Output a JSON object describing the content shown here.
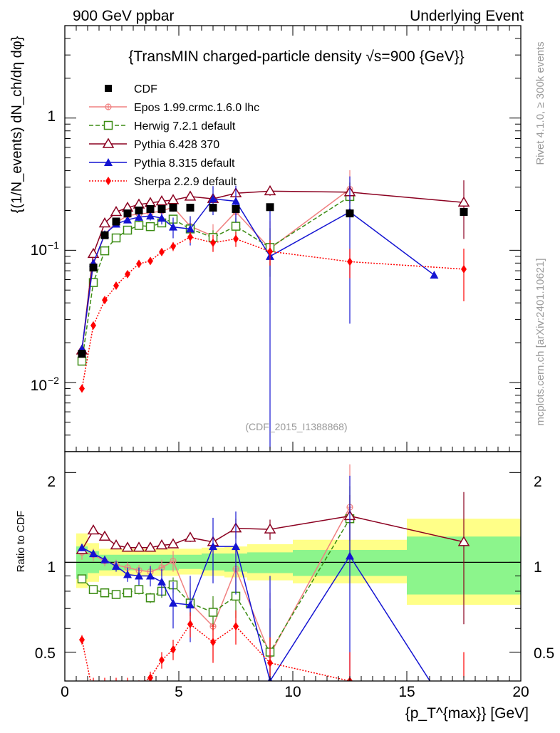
{
  "chart_data": {
    "type": "scatter",
    "title": "{TransMIN charged-particle density √s=900 {GeV}}",
    "header_left": "900 GeV ppbar",
    "header_right": "Underlying Event",
    "analysis_tag": "(CDF_2015_I1388868)",
    "side_right_top": "Rivet 4.1.0, ≥ 300k events",
    "side_right_bottom": "mcplots.cern.ch [arXiv:2401.10621]",
    "ylabel_main": "{(1/N_events) dN_ch/dη dφ}",
    "ylabel_ratio": "Ratio to CDF",
    "xlabel": "{p_T^{max}} [GeV]",
    "xlim": [
      0,
      20
    ],
    "ylim_main": [
      0.003,
      5
    ],
    "ylim_ratio": [
      0.4,
      2.35
    ],
    "x_ticks": [
      "0",
      "5",
      "10",
      "15",
      "20"
    ],
    "main_tick_labels": [
      "1",
      "10^-1",
      "10^-2"
    ],
    "ratio_tick_labels": [
      "2",
      "1",
      "0.5"
    ],
    "bands": [
      {
        "x0": 0.5,
        "x1": 1.0,
        "g": [
          0.88,
          1.13
        ],
        "y": [
          0.82,
          1.25
        ]
      },
      {
        "x0": 1.0,
        "x1": 1.5,
        "g": [
          0.92,
          1.09
        ],
        "y": [
          0.86,
          1.16
        ]
      },
      {
        "x0": 1.5,
        "x1": 5.0,
        "g": [
          0.94,
          1.06
        ],
        "y": [
          0.9,
          1.11
        ]
      },
      {
        "x0": 5.0,
        "x1": 6.0,
        "g": [
          0.95,
          1.06
        ],
        "y": [
          0.91,
          1.11
        ]
      },
      {
        "x0": 6.0,
        "x1": 7.0,
        "g": [
          0.94,
          1.07
        ],
        "y": [
          0.9,
          1.12
        ]
      },
      {
        "x0": 7.0,
        "x1": 8.0,
        "g": [
          0.93,
          1.07
        ],
        "y": [
          0.89,
          1.13
        ]
      },
      {
        "x0": 8.0,
        "x1": 10.0,
        "g": [
          0.92,
          1.08
        ],
        "y": [
          0.87,
          1.15
        ]
      },
      {
        "x0": 10.0,
        "x1": 15.0,
        "g": [
          0.9,
          1.1
        ],
        "y": [
          0.85,
          1.19
        ]
      },
      {
        "x0": 15.0,
        "x1": 20.0,
        "g": [
          0.78,
          1.22
        ],
        "y": [
          0.72,
          1.4
        ]
      }
    ],
    "data": {
      "name": "CDF",
      "x": [
        0.75,
        1.25,
        1.75,
        2.25,
        2.75,
        3.25,
        3.75,
        4.25,
        4.75,
        5.5,
        6.5,
        7.5,
        9.0,
        12.5,
        17.5
      ],
      "y": [
        0.0165,
        0.074,
        0.13,
        0.165,
        0.19,
        0.2,
        0.205,
        0.205,
        0.21,
        0.21,
        0.21,
        0.205,
        0.212,
        0.19,
        0.195
      ]
    },
    "series": [
      {
        "name": "Epos 1.99.crmc.1.6.0 lhc",
        "color": "#f08080",
        "dash": "",
        "marker": "cross",
        "x": [
          0.75,
          1.25,
          1.75,
          2.25,
          2.75,
          3.25,
          3.75,
          4.25,
          4.75,
          5.5,
          6.5,
          7.5,
          9.0,
          12.5
        ],
        "y": [
          0.0175,
          0.078,
          0.132,
          0.162,
          0.183,
          0.188,
          0.192,
          0.198,
          0.212,
          0.152,
          0.128,
          0.195,
          0.103,
          0.29
        ],
        "ratio": [
          1.08,
          1.06,
          1.01,
          0.98,
          0.96,
          0.94,
          0.93,
          0.96,
          1.01,
          0.73,
          0.61,
          0.95,
          0.49,
          1.53
        ],
        "rerr": [
          0.06,
          0.05,
          0.04,
          0.04,
          0.04,
          0.04,
          0.05,
          0.06,
          0.08,
          0.12,
          0.14,
          0.22,
          0.3,
          0.6
        ]
      },
      {
        "name": "Herwig 7.2.1 default",
        "color": "#3c8c14",
        "dash": "6,3",
        "marker": "square",
        "x": [
          0.75,
          1.25,
          1.75,
          2.25,
          2.75,
          3.25,
          3.75,
          4.25,
          4.75,
          5.5,
          6.5,
          7.5,
          9.0,
          12.5
        ],
        "y": [
          0.0145,
          0.057,
          0.099,
          0.124,
          0.142,
          0.154,
          0.151,
          0.161,
          0.172,
          0.145,
          0.125,
          0.152,
          0.105,
          0.255
        ],
        "ratio": [
          0.88,
          0.81,
          0.79,
          0.78,
          0.79,
          0.81,
          0.76,
          0.8,
          0.84,
          0.73,
          0.68,
          0.77,
          0.5,
          1.4
        ],
        "rerr": [
          0.03,
          0.02,
          0.02,
          0.02,
          0.02,
          0.03,
          0.03,
          0.04,
          0.05,
          0.07,
          0.09,
          0.12,
          0.2,
          0.4
        ]
      },
      {
        "name": "Pythia 6.428 370",
        "color": "#8b0020",
        "dash": "",
        "marker": "triangle-open",
        "x": [
          0.75,
          1.25,
          1.75,
          2.25,
          2.75,
          3.25,
          3.75,
          4.25,
          4.75,
          5.5,
          6.5,
          7.5,
          9.0,
          12.5,
          17.5
        ],
        "y": [
          0.0175,
          0.094,
          0.16,
          0.195,
          0.21,
          0.222,
          0.228,
          0.235,
          0.24,
          0.255,
          0.245,
          0.27,
          0.28,
          0.275,
          0.23
        ],
        "ratio": [
          1.1,
          1.28,
          1.22,
          1.14,
          1.12,
          1.12,
          1.12,
          1.14,
          1.15,
          1.21,
          1.17,
          1.3,
          1.29,
          1.43,
          1.17
        ],
        "rerr": [
          0.03,
          0.03,
          0.03,
          0.02,
          0.02,
          0.02,
          0.03,
          0.03,
          0.03,
          0.04,
          0.05,
          0.1,
          0.1,
          0.25,
          0.55
        ]
      },
      {
        "name": "Pythia 8.315 default",
        "color": "#1414d2",
        "dash": "",
        "marker": "triangle-filled",
        "x": [
          0.75,
          1.25,
          1.75,
          2.25,
          2.75,
          3.25,
          3.75,
          4.25,
          4.75,
          5.5,
          6.5,
          7.5,
          9.0,
          12.5,
          16.2
        ],
        "y": [
          0.018,
          0.08,
          0.132,
          0.158,
          0.17,
          0.178,
          0.182,
          0.175,
          0.15,
          0.145,
          0.245,
          0.235,
          0.09,
          0.195,
          0.065
        ],
        "ratio": [
          1.12,
          1.07,
          1.02,
          0.97,
          0.91,
          0.9,
          0.9,
          0.86,
          0.73,
          0.72,
          1.13,
          1.13,
          0.4,
          1.05,
          0.38
        ],
        "rerr": [
          0.03,
          0.03,
          0.03,
          0.04,
          0.05,
          0.06,
          0.07,
          0.09,
          0.13,
          0.18,
          0.28,
          0.35,
          0.5,
          0.9,
          0
        ]
      },
      {
        "name": "Sherpa 2.2.9 default",
        "color": "#ff0000",
        "dash": "2,2",
        "marker": "diamond",
        "x": [
          0.75,
          1.25,
          1.75,
          2.25,
          2.75,
          3.25,
          3.75,
          4.25,
          4.75,
          5.5,
          6.5,
          7.5,
          9.0,
          12.5,
          17.5
        ],
        "y": [
          0.009,
          0.027,
          0.042,
          0.054,
          0.066,
          0.079,
          0.083,
          0.097,
          0.107,
          0.126,
          0.114,
          0.122,
          0.098,
          0.082,
          0.072
        ],
        "ratio": [
          0.55,
          0.36,
          0.32,
          0.33,
          0.35,
          0.39,
          0.41,
          0.47,
          0.51,
          0.62,
          0.54,
          0.61,
          0.46,
          0.4,
          0.35
        ],
        "rerr": [
          0.02,
          0.01,
          0.01,
          0.01,
          0.01,
          0.02,
          0.02,
          0.03,
          0.04,
          0.06,
          0.08,
          0.08,
          0.1,
          0.1,
          0.15
        ]
      }
    ]
  }
}
